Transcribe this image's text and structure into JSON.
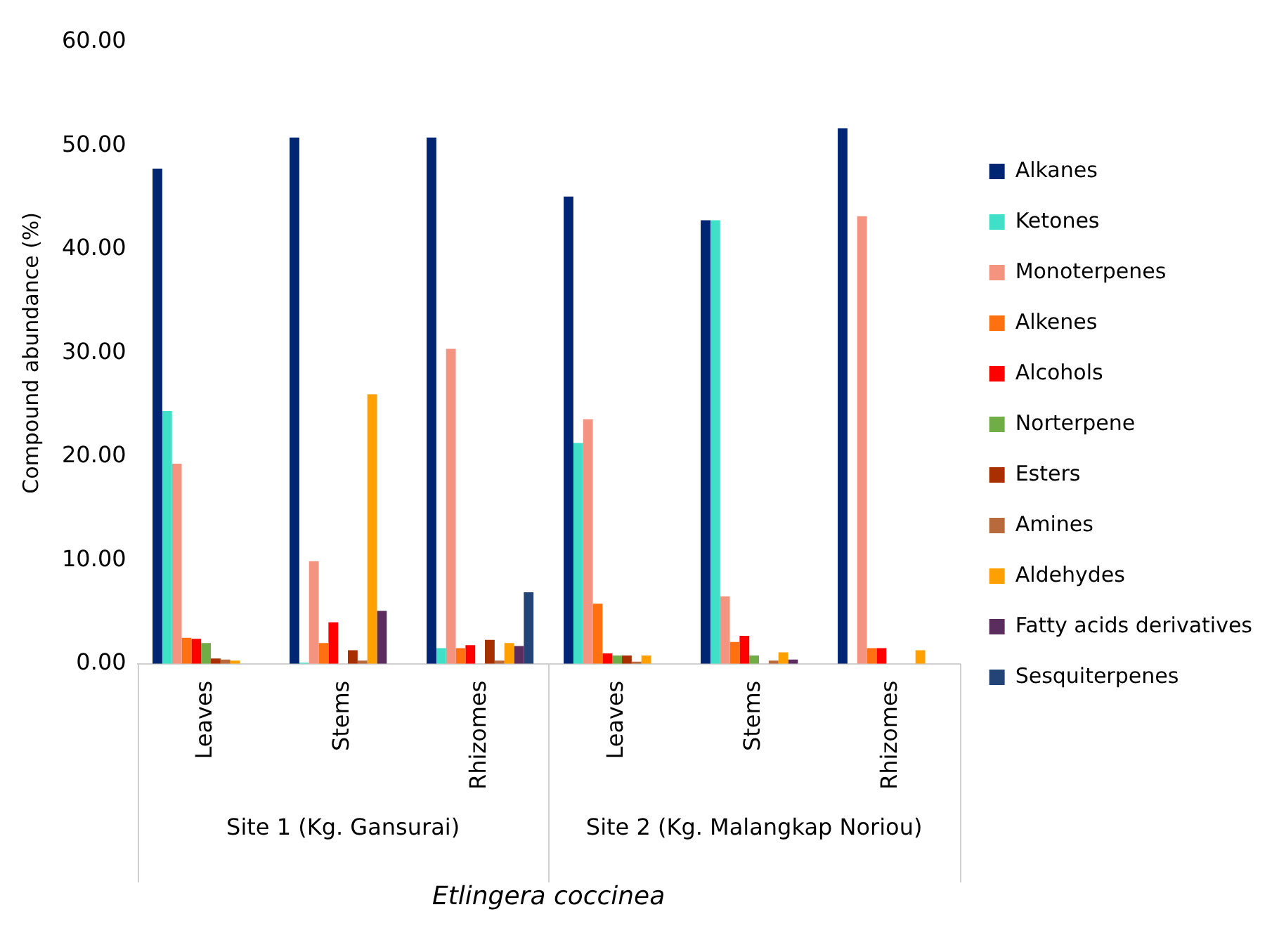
{
  "chart_data": {
    "type": "bar",
    "ylabel": "Compound abundance (%)",
    "xlabel": "Etlingera coccinea",
    "categories": [
      "Leaves",
      "Stems",
      "Rhizomes",
      "Leaves",
      "Stems",
      "Rhizomes"
    ],
    "annotations": [
      "Site 1 (Kg. Gansurai)",
      "Site 2 (Kg. Malangkap Noriou)"
    ],
    "ylim": [
      0,
      60
    ],
    "yticks": [
      {
        "value": 0,
        "label": "0.00"
      },
      {
        "value": 10,
        "label": "10.00"
      },
      {
        "value": 20,
        "label": "20.00"
      },
      {
        "value": 30,
        "label": "30.00"
      },
      {
        "value": 40,
        "label": "40.00"
      },
      {
        "value": 50,
        "label": "50.00"
      },
      {
        "value": 60,
        "label": "60.00"
      }
    ],
    "grid": false,
    "legend": "right",
    "series": [
      {
        "name": "Alkanes",
        "color": "#002673",
        "values": [
          47.8,
          50.8,
          50.8,
          45.1,
          42.8,
          51.7
        ]
      },
      {
        "name": "Ketones",
        "color": "#40e0c8",
        "values": [
          24.4,
          0.1,
          1.5,
          21.3,
          42.8,
          0
        ]
      },
      {
        "name": "Monoterpenes",
        "color": "#f4937f",
        "values": [
          19.3,
          9.9,
          30.4,
          23.6,
          6.5,
          43.2
        ]
      },
      {
        "name": "Alkenes",
        "color": "#ff7010",
        "values": [
          2.5,
          2.0,
          1.5,
          5.8,
          2.1,
          1.5
        ]
      },
      {
        "name": "Alcohols",
        "color": "#ff0000",
        "values": [
          2.4,
          4.0,
          1.8,
          1.0,
          2.7,
          1.5
        ]
      },
      {
        "name": "Norterpene",
        "color": "#70ad47",
        "values": [
          2.0,
          0,
          0,
          0.8,
          0.8,
          0
        ]
      },
      {
        "name": "Esters",
        "color": "#a83000",
        "values": [
          0.5,
          1.3,
          2.3,
          0.8,
          0,
          0
        ]
      },
      {
        "name": "Amines",
        "color": "#b86a3c",
        "values": [
          0.4,
          0.3,
          0.3,
          0.2,
          0.3,
          0
        ]
      },
      {
        "name": "Aldehydes",
        "color": "#ffa000",
        "values": [
          0.3,
          26.0,
          2.0,
          0.8,
          1.1,
          1.3
        ]
      },
      {
        "name": "Fatty acids derivatives",
        "color": "#5a2d5e",
        "values": [
          0,
          5.1,
          1.7,
          0,
          0.4,
          0
        ]
      },
      {
        "name": "Sesquiterpenes",
        "color": "#244478",
        "values": [
          0,
          0,
          6.9,
          0,
          0,
          0
        ]
      }
    ]
  }
}
